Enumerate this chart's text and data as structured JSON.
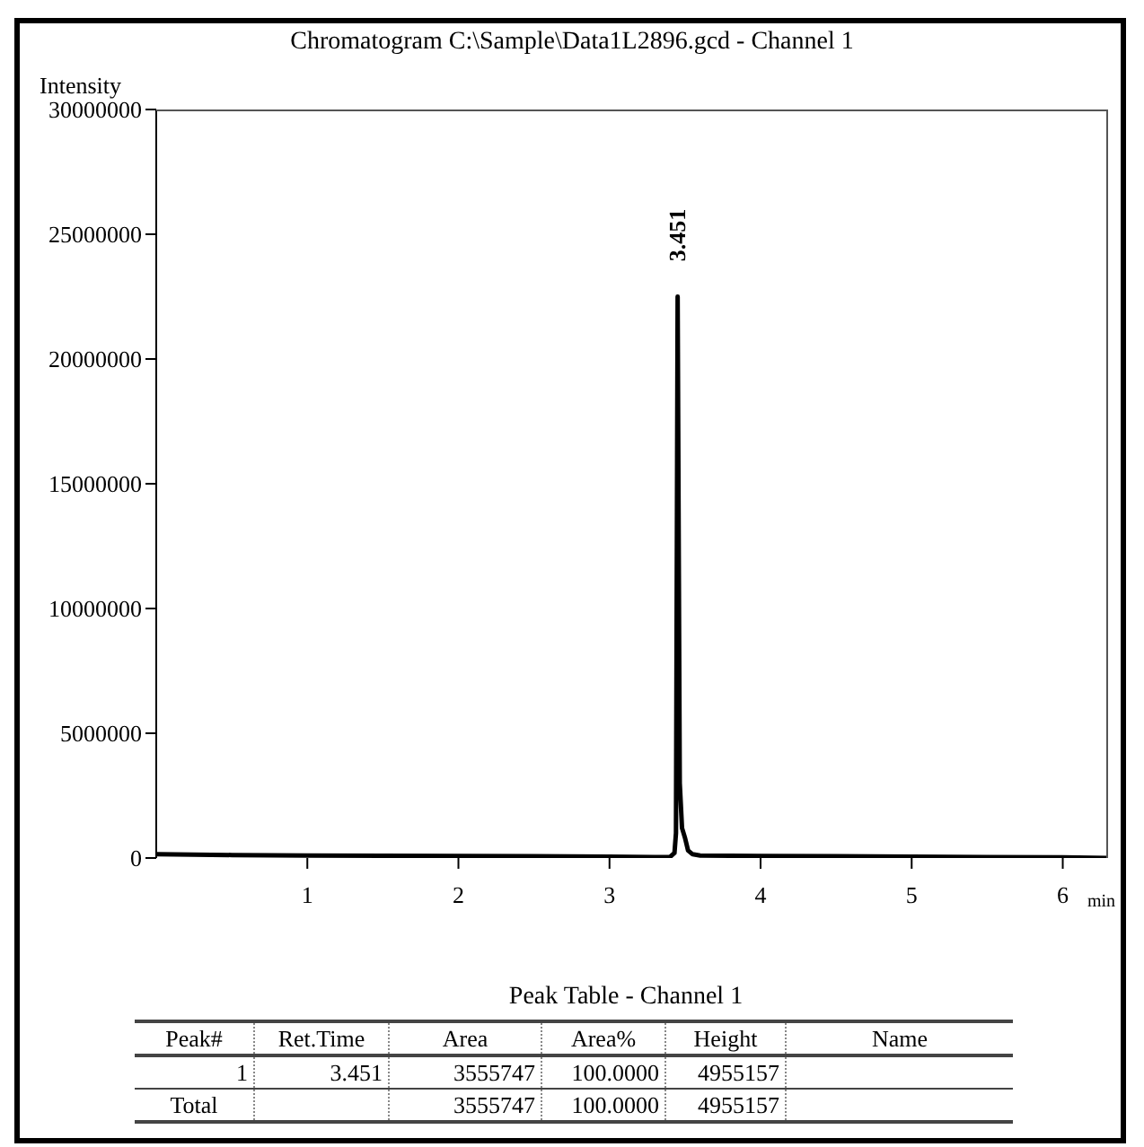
{
  "chart_data": {
    "type": "line",
    "title": "Chromatogram C:\\Sample\\Data1L2896.gcd - Channel 1",
    "xlabel": "min",
    "ylabel": "Intensity",
    "x": [
      0,
      0.5,
      1,
      1.5,
      2,
      2.5,
      3,
      3.3,
      3.4,
      3.43,
      3.44,
      3.451,
      3.465,
      3.48,
      3.5,
      3.52,
      3.55,
      3.6,
      4,
      4.5,
      5,
      5.5,
      6,
      6.3
    ],
    "series": [
      {
        "color": "#000000",
        "values": [
          150000,
          120000,
          100000,
          90000,
          80000,
          70000,
          50000,
          40000,
          40000,
          200000,
          1000000,
          22500000,
          3000000,
          1200000,
          800000,
          300000,
          150000,
          100000,
          80000,
          70000,
          50000,
          40000,
          30000,
          0
        ]
      }
    ],
    "xlim": [
      0,
      6.3
    ],
    "xticks": [
      1,
      2,
      3,
      4,
      5,
      6
    ],
    "ylim": [
      0,
      30000000
    ],
    "yticks": [
      0,
      5000000,
      10000000,
      15000000,
      20000000,
      25000000,
      30000000
    ],
    "annotations": [
      {
        "text": "3.451",
        "x": 3.451,
        "y": 22500000
      },
      "Peak Table - Channel 1",
      "Peak#",
      "Ret.Time",
      "Area",
      "Area%",
      "Height",
      "Name",
      "1",
      "3.451",
      "3555747",
      "100.0000",
      "4955157",
      "Total",
      "3555747",
      "100.0000",
      "4955157"
    ]
  }
}
